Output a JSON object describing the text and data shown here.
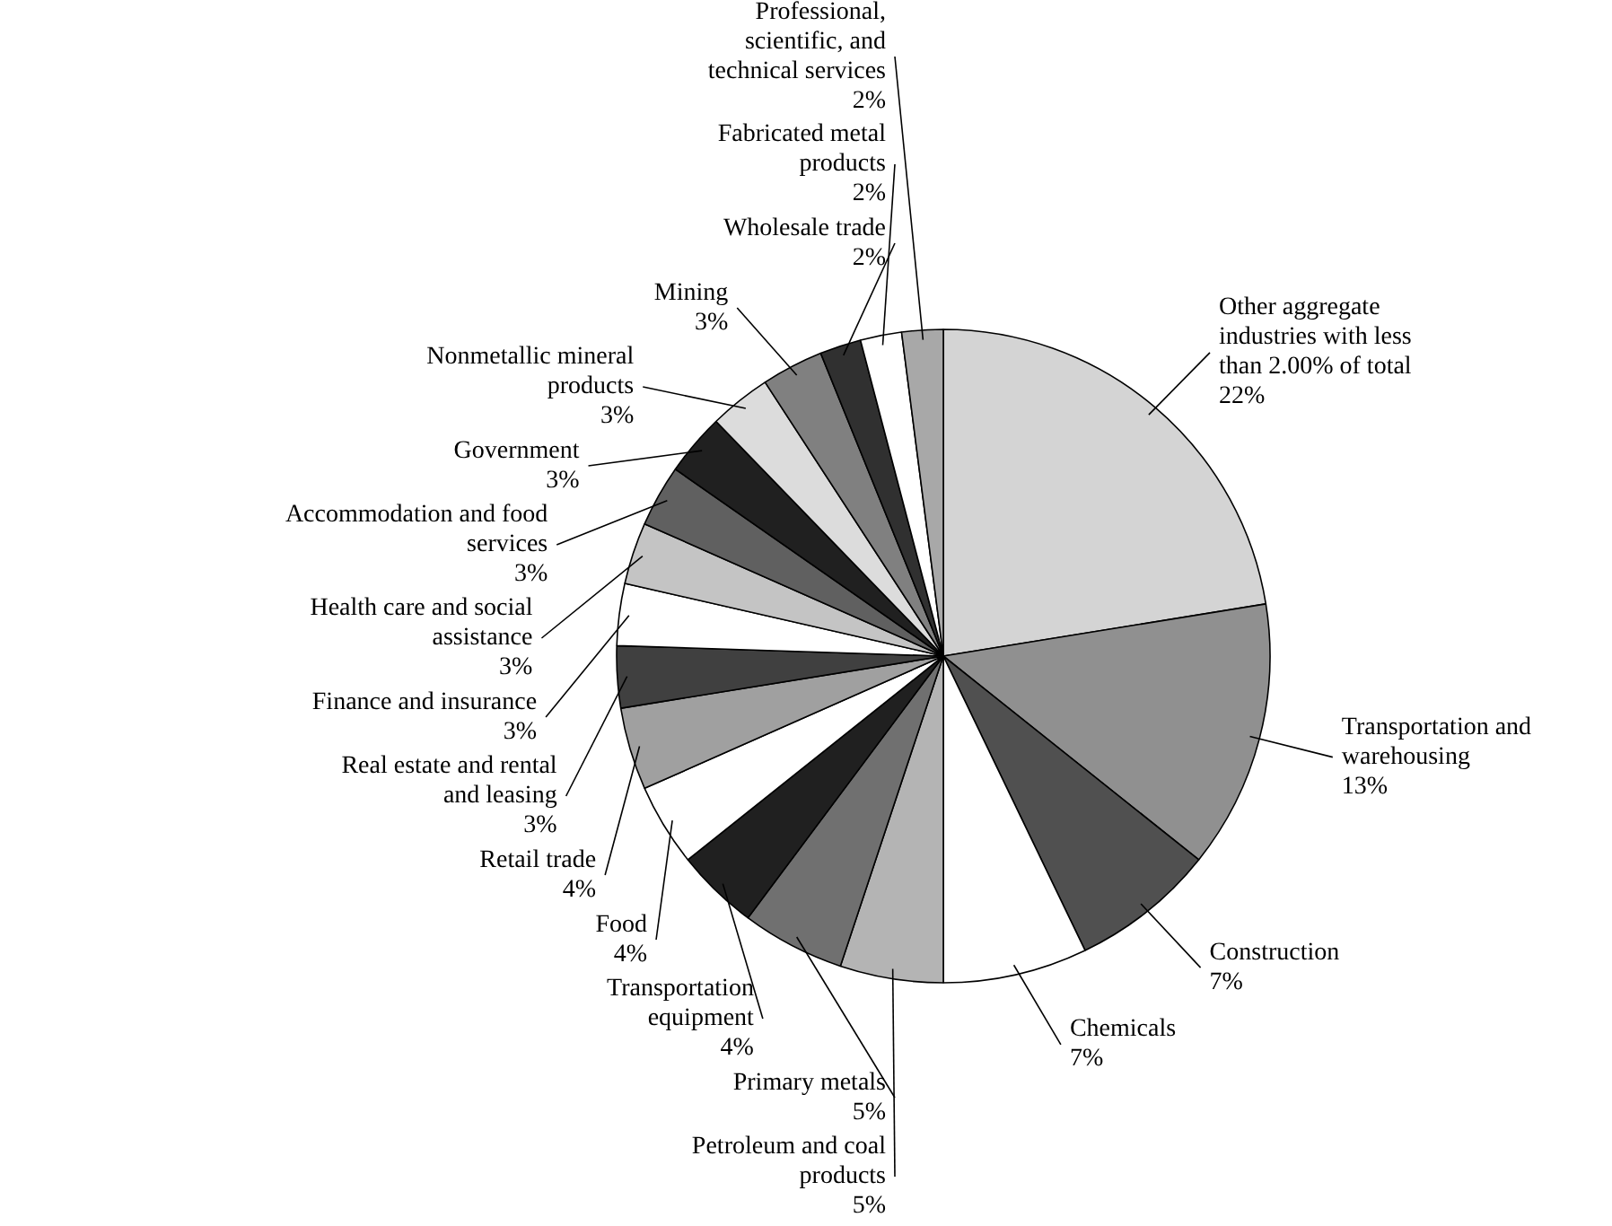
{
  "chart_data": {
    "type": "pie",
    "categories": [
      "Other aggregate industries with less than 2.00% of total",
      "Transportation and warehousing",
      "Construction",
      "Chemicals",
      "Petroleum and coal products",
      "Primary metals",
      "Transportation equipment",
      "Food",
      "Retail trade",
      "Real estate and rental and leasing",
      "Finance and insurance",
      "Health care and social assistance",
      "Accommodation and food services",
      "Government",
      "Nonmetallic mineral products",
      "Mining",
      "Wholesale trade",
      "Fabricated metal products",
      "Professional, scientific, and technical services"
    ],
    "values": [
      22,
      13,
      7,
      7,
      5,
      5,
      4,
      4,
      4,
      3,
      3,
      3,
      3,
      3,
      3,
      3,
      2,
      2,
      2
    ],
    "value_labels": [
      "22%",
      "13%",
      "7%",
      "7%",
      "5%",
      "5%",
      "4%",
      "4%",
      "4%",
      "3%",
      "3%",
      "3%",
      "3%",
      "3%",
      "3%",
      "3%",
      "2%",
      "2%",
      "2%"
    ],
    "colors": [
      "#d4d4d4",
      "#909090",
      "#505050",
      "#ffffff",
      "#b4b4b4",
      "#707070",
      "#202020",
      "#ffffff",
      "#a0a0a0",
      "#404040",
      "#ffffff",
      "#c4c4c4",
      "#606060",
      "#202020",
      "#dcdcdc",
      "#808080",
      "#303030",
      "#ffffff",
      "#a8a8a8"
    ]
  }
}
